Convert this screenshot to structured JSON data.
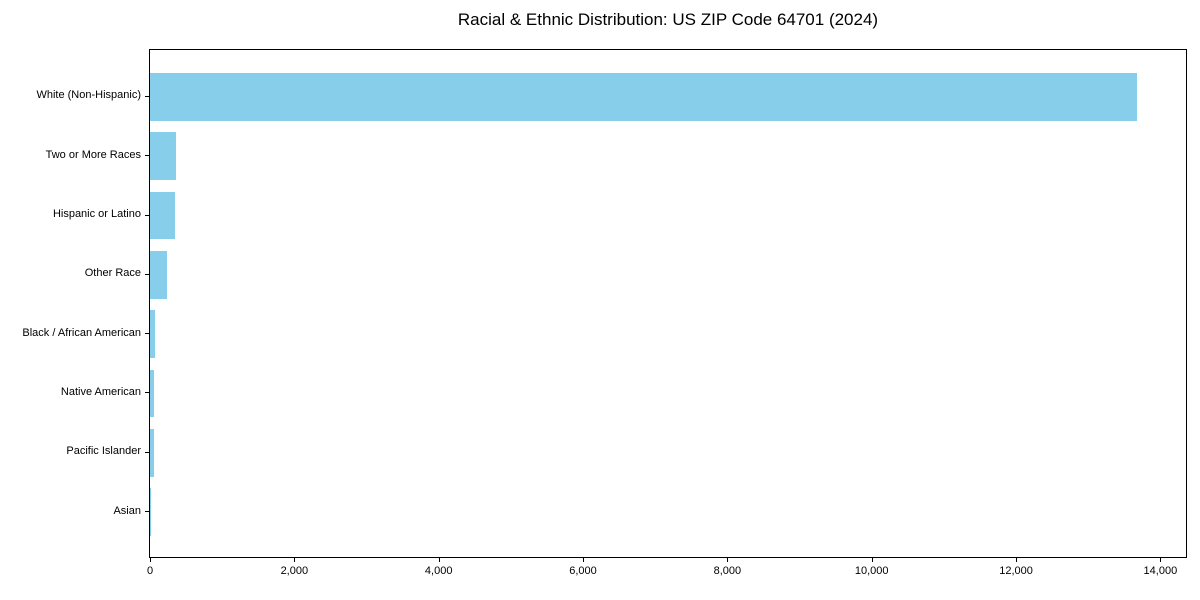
{
  "chart_data": {
    "type": "bar",
    "orientation": "horizontal",
    "title": "Racial & Ethnic Distribution: US ZIP Code 64701 (2024)",
    "categories": [
      "White (Non-Hispanic)",
      "Two or More Races",
      "Hispanic or Latino",
      "Other Race",
      "Black / African American",
      "Native American",
      "Pacific Islander",
      "Asian"
    ],
    "values": [
      13670,
      355,
      340,
      240,
      70,
      55,
      52,
      10
    ],
    "xlabel": "",
    "ylabel": "",
    "xlim": [
      0,
      14355
    ],
    "xticks": [
      0,
      2000,
      4000,
      6000,
      8000,
      10000,
      12000,
      14000
    ],
    "xtick_labels": [
      "0",
      "2,000",
      "4,000",
      "6,000",
      "8,000",
      "10,000",
      "12,000",
      "14,000"
    ],
    "bar_color": "#87CEEB",
    "axis_color": "#000000",
    "background_color": "#ffffff",
    "grid": false,
    "legend_position": "none"
  }
}
